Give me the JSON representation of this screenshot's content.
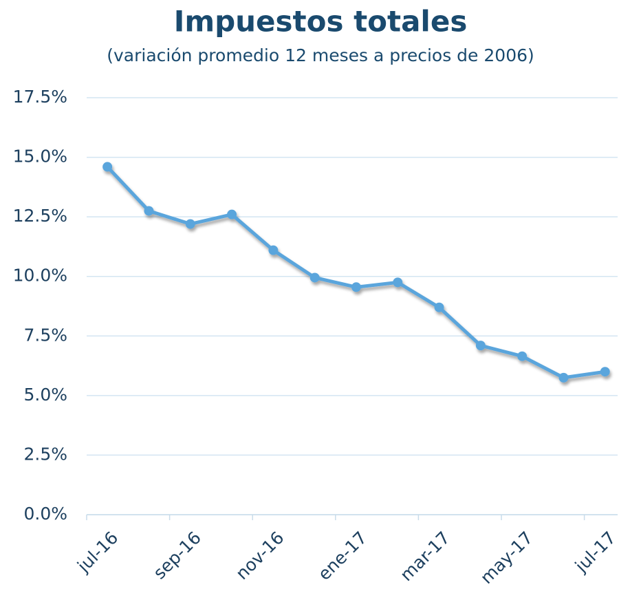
{
  "chart_data": {
    "type": "line",
    "title": "Impuestos totales",
    "subtitle": "(variación promedio 12 meses a precios de 2006)",
    "categories": [
      "jul-16",
      null,
      "sep-16",
      null,
      "nov-16",
      null,
      "ene-17",
      null,
      "mar-17",
      null,
      "may-17",
      null,
      "jul-17"
    ],
    "series": [
      {
        "name": "Impuestos totales",
        "color": "#5aa5dc",
        "values": [
          14.6,
          12.75,
          12.2,
          12.6,
          11.1,
          9.95,
          9.55,
          9.75,
          8.7,
          7.1,
          6.65,
          5.75,
          6.0
        ]
      }
    ],
    "ylim": [
      0,
      17.5
    ],
    "yticks": [
      {
        "value": 0,
        "label": "0.0%"
      },
      {
        "value": 2.5,
        "label": "2.5%"
      },
      {
        "value": 5,
        "label": "5.0%"
      },
      {
        "value": 7.5,
        "label": "7.5%"
      },
      {
        "value": 10,
        "label": "10.0%"
      },
      {
        "value": 12.5,
        "label": "12.5%"
      },
      {
        "value": 15,
        "label": "15.0%"
      },
      {
        "value": 17.5,
        "label": "17.5%"
      }
    ],
    "grid": true
  }
}
